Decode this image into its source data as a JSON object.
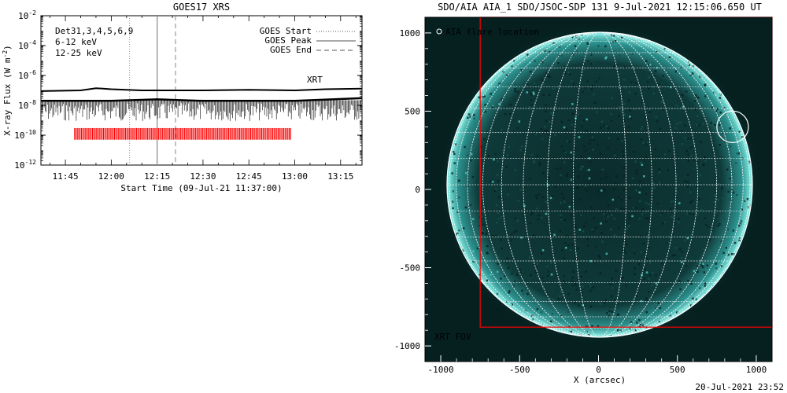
{
  "chart_data": [
    {
      "type": "line",
      "title": "GOES17 XRS",
      "xlabel": "Start Time (09-Jul-21 11:37:00)",
      "ylabel": "X-ray Flux (W m^-2)",
      "ylabel_base": "X-ray Flux (W m",
      "ylabel_exp": "-2",
      "ylabel_close": ")",
      "y_scale": "log",
      "ylim": [
        1e-12,
        0.01
      ],
      "xlim": [
        "11:37",
        "13:22"
      ],
      "x_ticks": [
        "11:45",
        "12:00",
        "12:15",
        "12:30",
        "12:45",
        "13:00",
        "13:15"
      ],
      "y_ticks": [
        {
          "base": "10",
          "exp": "-2"
        },
        {
          "base": "10",
          "exp": "-4"
        },
        {
          "base": "10",
          "exp": "-6"
        },
        {
          "base": "10",
          "exp": "-8"
        },
        {
          "base": "10",
          "exp": "-10"
        },
        {
          "base": "10",
          "exp": "-12"
        }
      ],
      "labels_left": [
        {
          "text": "Det31,3,4,5,6,9",
          "color": "#000000"
        },
        {
          "text": "6-12 keV",
          "color": "#e000e0"
        },
        {
          "text": "12-25 keV",
          "color": "#00cc00"
        }
      ],
      "legend": [
        {
          "text": "GOES Start",
          "style": "dotted"
        },
        {
          "text": "GOES Peak",
          "style": "solid"
        },
        {
          "text": "GOES End",
          "style": "dashed"
        }
      ],
      "legend_position": "top-right",
      "vlines": {
        "start": "12:06",
        "peak": "12:15",
        "end": "12:21"
      },
      "series": [
        {
          "values_note": "",
          "x": [
            "11:37",
            "11:50",
            "11:55",
            "12:00",
            "12:10",
            "12:30",
            "12:45",
            "13:00",
            "13:10",
            "13:22"
          ],
          "y": [
            9e-08,
            1e-07,
            1.4e-07,
            1.2e-07,
            1e-07,
            1e-07,
            1.1e-07,
            1e-07,
            1.2e-07,
            1.3e-07
          ]
        },
        {
          "values_note": "",
          "x": [
            "11:37",
            "12:00",
            "12:15",
            "12:30",
            "13:00",
            "13:22"
          ],
          "y": [
            2e-08,
            2e-08,
            2.5e-08,
            2e-08,
            2e-08,
            3e-08
          ]
        }
      ],
      "xrt_label": "XRT",
      "xrt_color": "#ff0000",
      "xrt_range": [
        "11:48",
        "12:59"
      ]
    },
    {
      "type": "heatmap",
      "title": "SDO/AIA AIA_1 SDO/JSOC-SDP 131  9-Jul-2021 12:15:06.650 UT",
      "xlabel": "X (arcsec)",
      "ylabel": "",
      "xlim": [
        -1100,
        1100
      ],
      "ylim": [
        -1100,
        1100
      ],
      "x_ticks": [
        "-1000",
        "-500",
        "0",
        "500",
        "1000"
      ],
      "y_ticks": [
        "1000",
        "500",
        "0",
        "-500",
        "-1000"
      ],
      "flare_legend": "AIA flare location",
      "flare_location": {
        "x": 850,
        "y": 400,
        "r": 100
      },
      "fov_label": "XRT FOV",
      "fov_color": "#ff0000",
      "fov_box": {
        "x0": -750,
        "x1": 1100,
        "y0": -880,
        "y1": 1100
      },
      "colors": {
        "disk": "#0d3434",
        "limb": "#7fe8e0",
        "background": "#062020",
        "grid": "#ffffff"
      }
    }
  ],
  "footer": {
    "timestamp": "20-Jul-2021 23:52"
  }
}
